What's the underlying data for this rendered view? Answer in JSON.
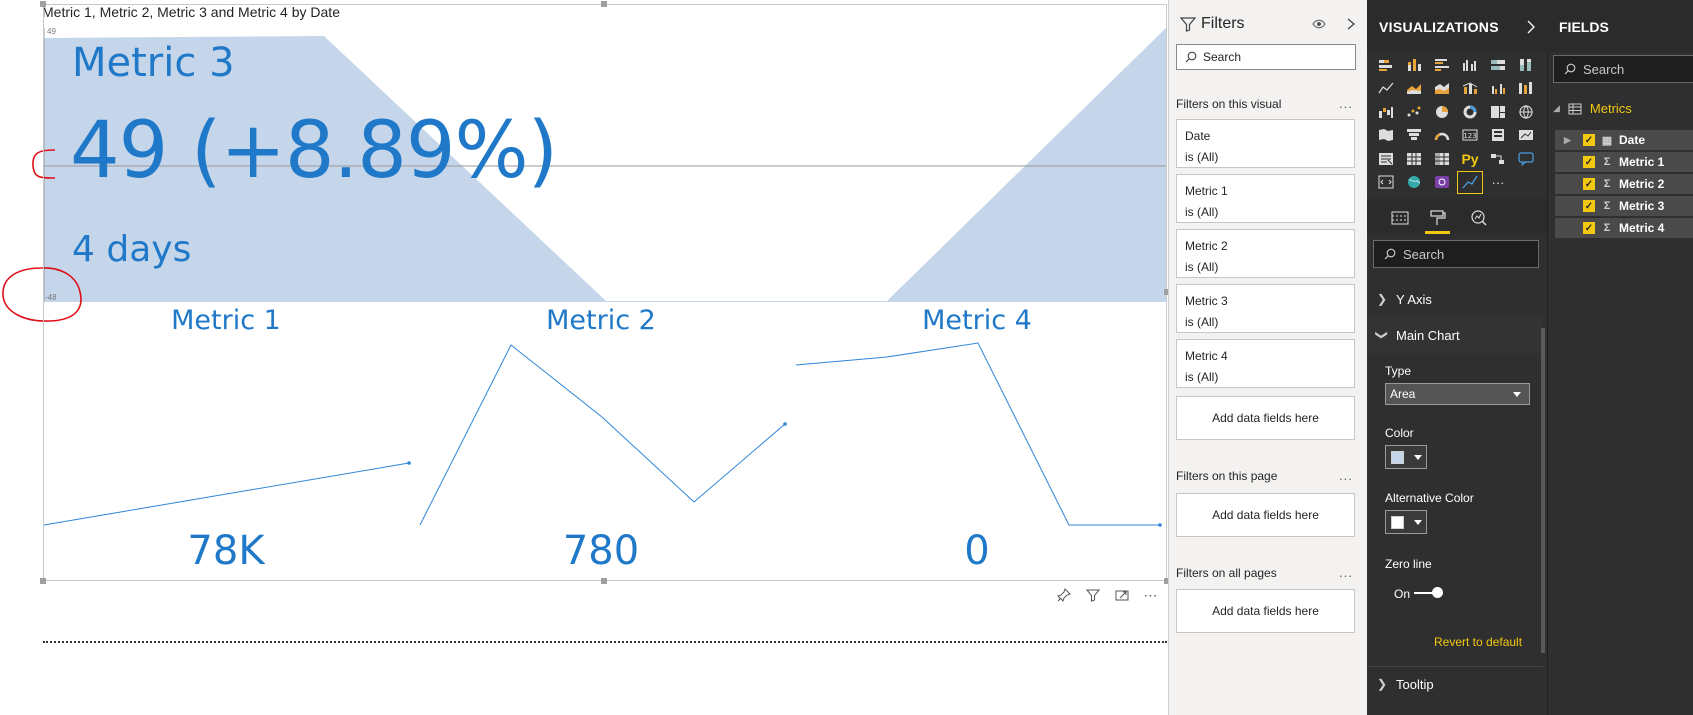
{
  "visual": {
    "title": "Metric 1, Metric 2, Metric 3 and Metric 4 by Date",
    "kpi": {
      "name": "Metric 3",
      "value": "49 (+8.89%)",
      "period": "4 days",
      "axis_top": "49",
      "axis_bottom": "-48"
    },
    "small_multiples": [
      {
        "title": "Metric 1",
        "value": "78K"
      },
      {
        "title": "Metric 2",
        "value": "780"
      },
      {
        "title": "Metric 4",
        "value": "0"
      }
    ],
    "colors": {
      "kpi_text": "#1f78c8",
      "area_fill": "#c5d6ea",
      "line": "#2f86d8",
      "annotation": "#e0101a"
    },
    "toolbar_icons": [
      "pin-icon",
      "filter-icon",
      "focus-mode-icon",
      "more-options-icon"
    ]
  },
  "filters": {
    "title": "Filters",
    "search_placeholder": "Search",
    "on_this_visual_label": "Filters on this visual",
    "cards": [
      {
        "field": "Date",
        "state": "is (All)"
      },
      {
        "field": "Metric 1",
        "state": "is (All)"
      },
      {
        "field": "Metric 2",
        "state": "is (All)"
      },
      {
        "field": "Metric 3",
        "state": "is (All)"
      },
      {
        "field": "Metric 4",
        "state": "is (All)"
      }
    ],
    "add_fields": "Add data fields here",
    "on_this_page_label": "Filters on this page",
    "on_all_pages_label": "Filters on all pages",
    "ellipsis": "..."
  },
  "visualizations": {
    "title": "VISUALIZATIONS",
    "search_placeholder": "Search",
    "python_label": "Py",
    "more_label": "···",
    "sections": {
      "y_axis": "Y Axis",
      "main_chart": "Main Chart",
      "tooltip": "Tooltip"
    },
    "type_label": "Type",
    "type_value": "Area",
    "color_label": "Color",
    "color_value": "#c5d6ea",
    "alt_color_label": "Alternative Color",
    "alt_color_value": "#ffffff",
    "zero_line_label": "Zero line",
    "zero_line_state": "On",
    "revert": "Revert to default"
  },
  "fields": {
    "title": "FIELDS",
    "search_placeholder": "Search",
    "table_name": "Metrics",
    "items": [
      "Date",
      "Metric 1",
      "Metric 2",
      "Metric 3",
      "Metric 4"
    ]
  }
}
